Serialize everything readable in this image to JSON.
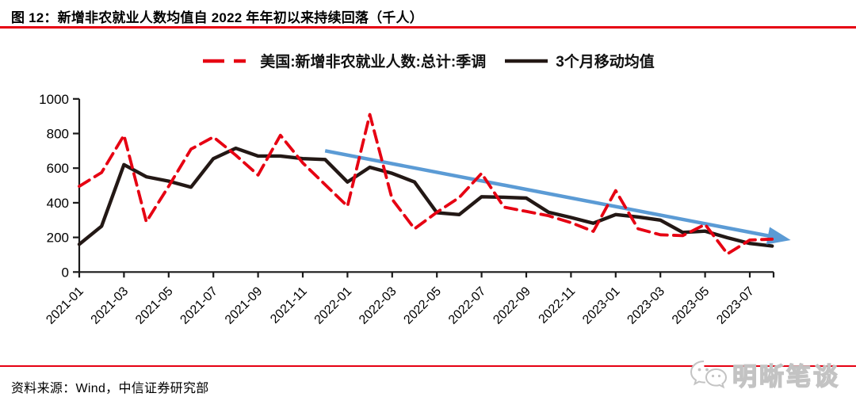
{
  "header": {
    "title": "图 12：新增非农就业人数均值自 2022 年年初以来持续回落（千人）"
  },
  "legend": {
    "items": [
      {
        "label": "美国:新增非农就业人数:总计:季调",
        "color": "#e60012",
        "style": "dashed"
      },
      {
        "label": "3个月移动均值",
        "color": "#231815",
        "style": "solid"
      }
    ]
  },
  "footer": {
    "source": "资料来源：Wind，中信证券研究部",
    "watermark_text": "明晰笔谈"
  },
  "colors": {
    "accent_red": "#e60012",
    "line_black": "#231815",
    "trend_blue": "#5b9bd5",
    "axis": "#1a1a1a",
    "watermark_gray": "#c3c3c3"
  },
  "chart_data": {
    "type": "line",
    "title": "新增非农就业人数均值自 2022 年年初以来持续回落（千人）",
    "xlabel": "",
    "ylabel": "",
    "ylim": [
      0,
      1000
    ],
    "yticks": [
      0,
      200,
      400,
      600,
      800,
      1000
    ],
    "grid": false,
    "legend_position": "top-center",
    "x": [
      "2021-01",
      "2021-02",
      "2021-03",
      "2021-04",
      "2021-05",
      "2021-06",
      "2021-07",
      "2021-08",
      "2021-09",
      "2021-10",
      "2021-11",
      "2021-12",
      "2022-01",
      "2022-02",
      "2022-03",
      "2022-04",
      "2022-05",
      "2022-06",
      "2022-07",
      "2022-08",
      "2022-09",
      "2022-10",
      "2022-11",
      "2022-12",
      "2023-01",
      "2023-02",
      "2023-03",
      "2023-04",
      "2023-05",
      "2023-06",
      "2023-07",
      "2023-08"
    ],
    "x_tick_labels": [
      "2021-01",
      "2021-03",
      "2021-05",
      "2021-07",
      "2021-09",
      "2021-11",
      "2022-01",
      "2022-03",
      "2022-05",
      "2022-07",
      "2022-09",
      "2022-11",
      "2023-01",
      "2023-03",
      "2023-05",
      "2023-07"
    ],
    "series": [
      {
        "name": "美国:新增非农就业人数:总计:季调",
        "color": "#e60012",
        "dash": true,
        "width": 3.8,
        "values": [
          495,
          575,
          790,
          290,
          495,
          710,
          780,
          675,
          560,
          790,
          630,
          505,
          380,
          910,
          420,
          250,
          345,
          430,
          570,
          375,
          350,
          325,
          285,
          235,
          470,
          250,
          215,
          210,
          275,
          105,
          185,
          190
        ]
      },
      {
        "name": "3个月移动均值",
        "color": "#231815",
        "dash": false,
        "width": 4.4,
        "values": [
          160,
          265,
          620,
          550,
          525,
          490,
          655,
          715,
          670,
          670,
          655,
          650,
          520,
          605,
          570,
          520,
          343,
          332,
          435,
          432,
          427,
          345,
          315,
          282,
          332,
          318,
          300,
          229,
          236,
          198,
          165,
          150
        ]
      }
    ],
    "trend_arrow": {
      "from_x": "2021-12",
      "from_value": 700,
      "to_x": "2023-08",
      "to_value": 205,
      "color": "#5b9bd5"
    }
  }
}
